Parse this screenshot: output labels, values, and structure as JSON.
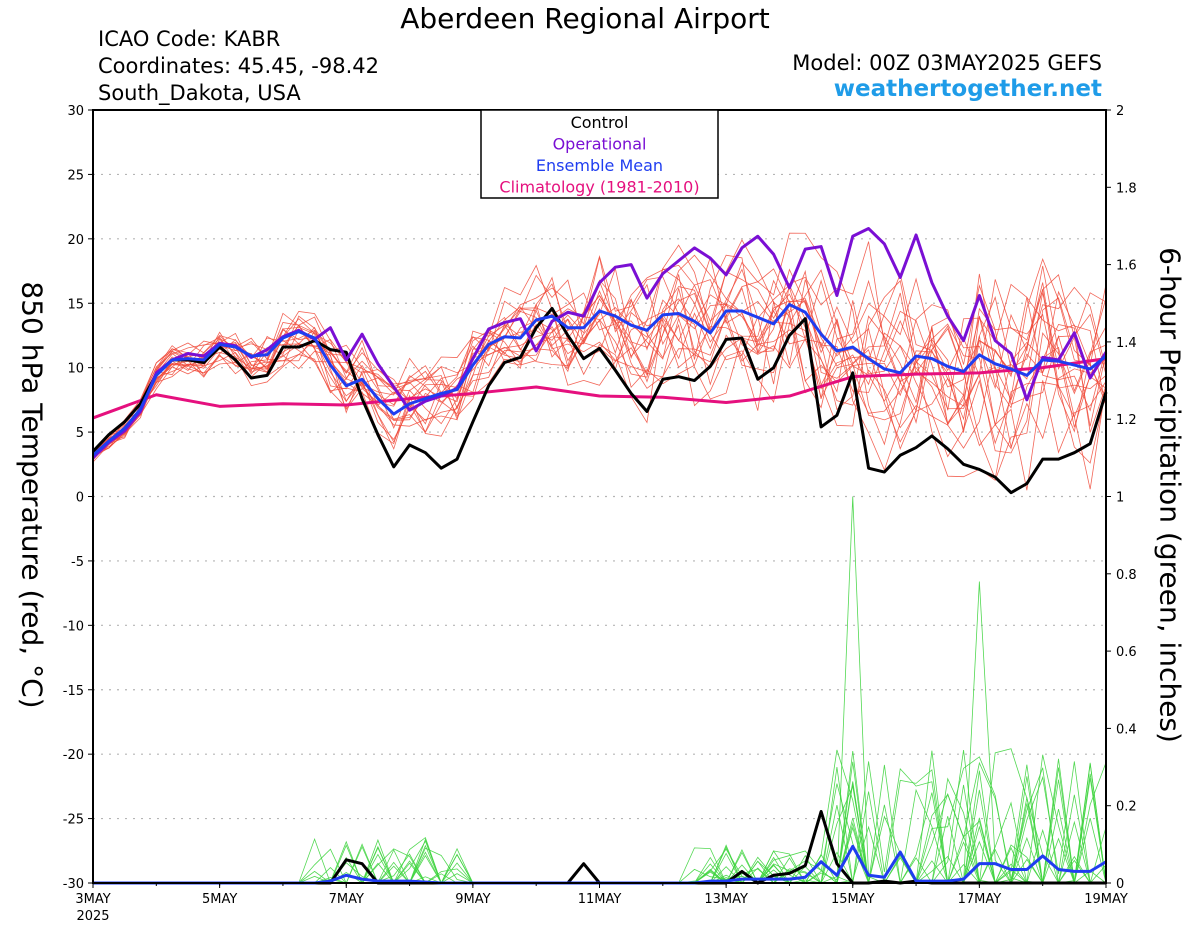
{
  "header": {
    "title": "Aberdeen Regional Airport",
    "icao": "ICAO Code: KABR",
    "coordinates": "Coordinates: 45.45, -98.42",
    "state": "South_Dakota, USA",
    "model": "Model: 00Z 03MAY2025 GEFS",
    "site": "weathertogether.net"
  },
  "chart_data": {
    "type": "line",
    "xlabel": "",
    "ylabel": "850 hPa Temperature (red, °C)",
    "ylabel_right": "6-hour Precipitation (green, inches)",
    "x_unit": "days since 03MAY 00Z",
    "xlim": [
      0,
      16
    ],
    "ylim": [
      -30,
      30
    ],
    "ylim_right": [
      0,
      2
    ],
    "x_ticks": [
      {
        "x": 0,
        "label": "3MAY",
        "sub": "2025"
      },
      {
        "x": 2,
        "label": "5MAY"
      },
      {
        "x": 4,
        "label": "7MAY"
      },
      {
        "x": 6,
        "label": "9MAY"
      },
      {
        "x": 8,
        "label": "11MAY"
      },
      {
        "x": 10,
        "label": "13MAY"
      },
      {
        "x": 12,
        "label": "15MAY"
      },
      {
        "x": 14,
        "label": "17MAY"
      },
      {
        "x": 16,
        "label": "19MAY"
      }
    ],
    "y_ticks": [
      30,
      25,
      20,
      15,
      10,
      5,
      0,
      -5,
      -10,
      -15,
      -20,
      -25,
      -30
    ],
    "y_ticks_right": [
      2,
      1.8,
      1.6,
      1.4,
      1.2,
      1,
      0.8,
      0.6,
      0.4,
      0.2,
      0
    ],
    "grid": true,
    "legend": {
      "position": "top-center",
      "items": [
        {
          "label": "Control",
          "color": "#000000"
        },
        {
          "label": "Operational",
          "color": "#7a0fd4"
        },
        {
          "label": "Ensemble Mean",
          "color": "#1f3df0"
        },
        {
          "label": "Climatology (1981-2010)",
          "color": "#e5107e"
        }
      ]
    },
    "series": [
      {
        "name": "Climatology (1981-2010)",
        "color": "#e5107e",
        "width": 3,
        "axis": "left",
        "points": [
          [
            0,
            6.1
          ],
          [
            1,
            7.9
          ],
          [
            2,
            7.0
          ],
          [
            3,
            7.2
          ],
          [
            4,
            7.1
          ],
          [
            5,
            7.6
          ],
          [
            6,
            8.0
          ],
          [
            7,
            8.5
          ],
          [
            8,
            7.8
          ],
          [
            9,
            7.7
          ],
          [
            10,
            7.3
          ],
          [
            11,
            7.8
          ],
          [
            12,
            9.3
          ],
          [
            13,
            9.5
          ],
          [
            14,
            9.6
          ],
          [
            15,
            10.0
          ],
          [
            16,
            10.7
          ]
        ]
      },
      {
        "name": "Control",
        "color": "#000000",
        "width": 3,
        "axis": "left",
        "points": [
          [
            0,
            3.5
          ],
          [
            0.25,
            4.8
          ],
          [
            0.5,
            5.8
          ],
          [
            0.75,
            7.2
          ],
          [
            1,
            9.5
          ],
          [
            1.25,
            10.6
          ],
          [
            1.5,
            10.6
          ],
          [
            1.75,
            10.4
          ],
          [
            2,
            11.6
          ],
          [
            2.25,
            10.6
          ],
          [
            2.5,
            9.2
          ],
          [
            2.75,
            9.4
          ],
          [
            3,
            11.6
          ],
          [
            3.25,
            11.6
          ],
          [
            3.5,
            12.1
          ],
          [
            3.75,
            11.4
          ],
          [
            4,
            11.2
          ],
          [
            4.25,
            7.6
          ],
          [
            4.5,
            4.8
          ],
          [
            4.75,
            2.3
          ],
          [
            5,
            4.0
          ],
          [
            5.25,
            3.4
          ],
          [
            5.5,
            2.2
          ],
          [
            5.75,
            2.9
          ],
          [
            6,
            5.8
          ],
          [
            6.25,
            8.6
          ],
          [
            6.5,
            10.4
          ],
          [
            6.75,
            10.8
          ],
          [
            7,
            13.1
          ],
          [
            7.25,
            14.6
          ],
          [
            7.5,
            12.5
          ],
          [
            7.75,
            10.7
          ],
          [
            8,
            11.5
          ],
          [
            8.25,
            9.8
          ],
          [
            8.5,
            8.0
          ],
          [
            8.75,
            6.6
          ],
          [
            9,
            9.1
          ],
          [
            9.25,
            9.3
          ],
          [
            9.5,
            9.0
          ],
          [
            9.75,
            10.1
          ],
          [
            10,
            12.2
          ],
          [
            10.25,
            12.3
          ],
          [
            10.5,
            9.1
          ],
          [
            10.75,
            10.0
          ],
          [
            11,
            12.5
          ],
          [
            11.25,
            13.8
          ],
          [
            11.5,
            5.4
          ],
          [
            11.75,
            6.3
          ],
          [
            12,
            9.6
          ],
          [
            12.25,
            2.2
          ],
          [
            12.5,
            1.9
          ],
          [
            12.75,
            3.2
          ],
          [
            13,
            3.8
          ],
          [
            13.25,
            4.7
          ],
          [
            13.5,
            3.7
          ],
          [
            13.75,
            2.5
          ],
          [
            14,
            2.1
          ],
          [
            14.25,
            1.5
          ],
          [
            14.5,
            0.3
          ],
          [
            14.75,
            1.0
          ],
          [
            15,
            2.9
          ],
          [
            15.25,
            2.9
          ],
          [
            15.5,
            3.4
          ],
          [
            15.75,
            4.1
          ],
          [
            16,
            8.1
          ]
        ]
      },
      {
        "name": "Operational",
        "color": "#7a0fd4",
        "width": 3,
        "axis": "left",
        "points": [
          [
            0,
            3.0
          ],
          [
            0.25,
            4.2
          ],
          [
            0.5,
            5.1
          ],
          [
            0.75,
            6.6
          ],
          [
            1,
            9.6
          ],
          [
            1.25,
            10.6
          ],
          [
            1.5,
            11.1
          ],
          [
            1.75,
            10.9
          ],
          [
            2,
            11.9
          ],
          [
            2.25,
            11.7
          ],
          [
            2.5,
            10.8
          ],
          [
            2.75,
            11.4
          ],
          [
            3,
            12.4
          ],
          [
            3.25,
            12.9
          ],
          [
            3.5,
            12.2
          ],
          [
            3.75,
            13.1
          ],
          [
            4,
            10.6
          ],
          [
            4.25,
            12.6
          ],
          [
            4.5,
            10.3
          ],
          [
            4.75,
            8.5
          ],
          [
            5,
            6.7
          ],
          [
            5.25,
            7.4
          ],
          [
            5.5,
            7.8
          ],
          [
            5.75,
            8.4
          ],
          [
            6,
            10.7
          ],
          [
            6.25,
            13.0
          ],
          [
            6.5,
            13.5
          ],
          [
            6.75,
            13.8
          ],
          [
            7,
            11.3
          ],
          [
            7.25,
            13.6
          ],
          [
            7.5,
            14.3
          ],
          [
            7.75,
            14.0
          ],
          [
            8,
            16.6
          ],
          [
            8.25,
            17.8
          ],
          [
            8.5,
            18.0
          ],
          [
            8.75,
            15.4
          ],
          [
            9,
            17.3
          ],
          [
            9.25,
            18.3
          ],
          [
            9.5,
            19.3
          ],
          [
            9.75,
            18.5
          ],
          [
            10,
            17.2
          ],
          [
            10.25,
            19.3
          ],
          [
            10.5,
            20.2
          ],
          [
            10.75,
            18.8
          ],
          [
            11,
            16.2
          ],
          [
            11.25,
            19.2
          ],
          [
            11.5,
            19.4
          ],
          [
            11.75,
            15.6
          ],
          [
            12,
            20.2
          ],
          [
            12.25,
            20.8
          ],
          [
            12.5,
            19.6
          ],
          [
            12.75,
            17.0
          ],
          [
            13,
            20.3
          ],
          [
            13.25,
            16.6
          ],
          [
            13.5,
            14.0
          ],
          [
            13.75,
            12.1
          ],
          [
            14,
            15.6
          ],
          [
            14.25,
            12.1
          ],
          [
            14.5,
            11.1
          ],
          [
            14.75,
            7.5
          ],
          [
            15,
            10.8
          ],
          [
            15.25,
            10.6
          ],
          [
            15.5,
            12.7
          ],
          [
            15.75,
            9.2
          ],
          [
            16,
            11.2
          ]
        ]
      },
      {
        "name": "Ensemble Mean",
        "color": "#1f3df0",
        "width": 3,
        "axis": "left",
        "points": [
          [
            0,
            3.2
          ],
          [
            0.25,
            4.3
          ],
          [
            0.5,
            5.3
          ],
          [
            0.75,
            6.8
          ],
          [
            1,
            9.4
          ],
          [
            1.25,
            10.6
          ],
          [
            1.5,
            10.7
          ],
          [
            1.75,
            10.6
          ],
          [
            2,
            11.8
          ],
          [
            2.25,
            11.6
          ],
          [
            2.5,
            10.9
          ],
          [
            2.75,
            11.0
          ],
          [
            3,
            12.3
          ],
          [
            3.25,
            12.8
          ],
          [
            3.5,
            12.3
          ],
          [
            3.75,
            10.2
          ],
          [
            4,
            8.6
          ],
          [
            4.25,
            9.1
          ],
          [
            4.5,
            7.6
          ],
          [
            4.75,
            6.4
          ],
          [
            5,
            7.2
          ],
          [
            5.25,
            7.6
          ],
          [
            5.5,
            8.0
          ],
          [
            5.75,
            8.3
          ],
          [
            6,
            10.2
          ],
          [
            6.25,
            11.8
          ],
          [
            6.5,
            12.4
          ],
          [
            6.75,
            12.3
          ],
          [
            7,
            13.7
          ],
          [
            7.25,
            14.0
          ],
          [
            7.5,
            13.1
          ],
          [
            7.75,
            13.1
          ],
          [
            8,
            14.4
          ],
          [
            8.25,
            14.0
          ],
          [
            8.5,
            13.3
          ],
          [
            8.75,
            12.9
          ],
          [
            9,
            14.1
          ],
          [
            9.25,
            14.2
          ],
          [
            9.5,
            13.6
          ],
          [
            9.75,
            12.7
          ],
          [
            10,
            14.4
          ],
          [
            10.25,
            14.4
          ],
          [
            10.5,
            13.9
          ],
          [
            10.75,
            13.4
          ],
          [
            11,
            14.9
          ],
          [
            11.25,
            14.3
          ],
          [
            11.5,
            12.6
          ],
          [
            11.75,
            11.3
          ],
          [
            12,
            11.6
          ],
          [
            12.25,
            10.7
          ],
          [
            12.5,
            9.9
          ],
          [
            12.75,
            9.6
          ],
          [
            13,
            10.9
          ],
          [
            13.25,
            10.7
          ],
          [
            13.5,
            10.1
          ],
          [
            13.75,
            9.7
          ],
          [
            14,
            11.0
          ],
          [
            14.25,
            10.3
          ],
          [
            14.5,
            9.9
          ],
          [
            14.75,
            9.4
          ],
          [
            15,
            10.6
          ],
          [
            15.25,
            10.5
          ],
          [
            15.5,
            10.2
          ],
          [
            15.75,
            9.9
          ],
          [
            16,
            10.9
          ]
        ]
      },
      {
        "name": "Control precipitation",
        "color": "#000000",
        "width": 3,
        "axis": "right",
        "points": [
          [
            0,
            0
          ],
          [
            3.75,
            0
          ],
          [
            4,
            0.06
          ],
          [
            4.25,
            0.05
          ],
          [
            4.5,
            0
          ],
          [
            7.5,
            0
          ],
          [
            7.75,
            0.05
          ],
          [
            8,
            0
          ],
          [
            10,
            0
          ],
          [
            10.25,
            0.03
          ],
          [
            10.5,
            0
          ],
          [
            10.75,
            0.02
          ],
          [
            11,
            0.025
          ],
          [
            11.25,
            0.045
          ],
          [
            11.5,
            0.185
          ],
          [
            11.75,
            0.05
          ],
          [
            12,
            0
          ],
          [
            12.25,
            0
          ],
          [
            12.5,
            0.005
          ],
          [
            12.75,
            0
          ],
          [
            13,
            0.005
          ],
          [
            13.25,
            0
          ],
          [
            16,
            0
          ]
        ]
      },
      {
        "name": "Ensemble mean precipitation",
        "color": "#1f3df0",
        "width": 3,
        "axis": "right",
        "points": [
          [
            0,
            0
          ],
          [
            3.5,
            0
          ],
          [
            3.75,
            0.005
          ],
          [
            4,
            0.02
          ],
          [
            4.25,
            0.01
          ],
          [
            4.5,
            0.005
          ],
          [
            5,
            0.005
          ],
          [
            5.5,
            0
          ],
          [
            9.5,
            0
          ],
          [
            9.75,
            0.005
          ],
          [
            10,
            0.005
          ],
          [
            10.25,
            0.01
          ],
          [
            10.5,
            0.01
          ],
          [
            11,
            0.01
          ],
          [
            11.25,
            0.015
          ],
          [
            11.5,
            0.055
          ],
          [
            11.75,
            0.02
          ],
          [
            12,
            0.095
          ],
          [
            12.25,
            0.02
          ],
          [
            12.5,
            0.015
          ],
          [
            12.75,
            0.08
          ],
          [
            13,
            0.005
          ],
          [
            13.25,
            0.005
          ],
          [
            13.5,
            0.005
          ],
          [
            13.75,
            0.01
          ],
          [
            14,
            0.05
          ],
          [
            14.25,
            0.05
          ],
          [
            14.5,
            0.035
          ],
          [
            14.75,
            0.035
          ],
          [
            15,
            0.07
          ],
          [
            15.25,
            0.035
          ],
          [
            15.5,
            0.03
          ],
          [
            15.75,
            0.03
          ],
          [
            16,
            0.055
          ]
        ]
      }
    ]
  }
}
